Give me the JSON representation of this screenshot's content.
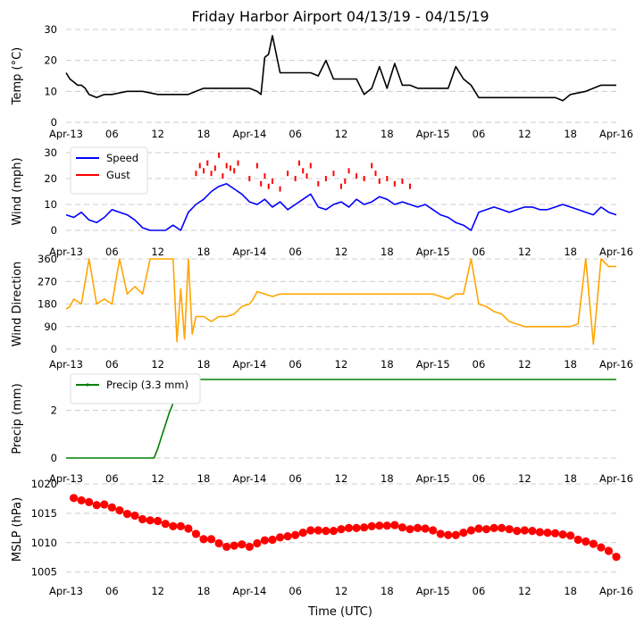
{
  "chart_data": {
    "type": "line",
    "title": "Friday Harbor Airport 04/13/19 - 04/15/19",
    "xlabel": "Time (UTC)",
    "x_ticks": [
      "Apr-13",
      "06",
      "12",
      "18",
      "Apr-14",
      "06",
      "12",
      "18",
      "Apr-15",
      "06",
      "12",
      "18",
      "Apr-16"
    ],
    "x_range_hours": [
      0,
      72
    ],
    "panels": [
      {
        "id": "temp",
        "ylabel": "Temp ($^\\circ$C)",
        "ylabel_display": "Temp (°C)",
        "ylim": [
          0,
          30
        ],
        "yticks": [
          0,
          10,
          20,
          30
        ],
        "series": [
          {
            "name": "Temp",
            "color": "#000000",
            "x": [
              0,
              0.5,
              1,
              1.5,
              2,
              2.5,
              3,
              4,
              5,
              6,
              8,
              10,
              12,
              14,
              16,
              17,
              18,
              20,
              22,
              24,
              25,
              25.5,
              26,
              26.5,
              27,
              28,
              30,
              32,
              33,
              34,
              35,
              36,
              38,
              39,
              40,
              41,
              42,
              43,
              44,
              45,
              46,
              47,
              48,
              50,
              51,
              52,
              53,
              54,
              56,
              58,
              60,
              62,
              64,
              65,
              66,
              68,
              70,
              72
            ],
            "values": [
              16,
              14,
              13,
              12,
              12,
              11,
              9,
              8,
              9,
              9,
              10,
              10,
              9,
              9,
              9,
              10,
              11,
              11,
              11,
              11,
              10,
              9,
              21,
              22,
              28,
              16,
              16,
              16,
              15,
              20,
              14,
              14,
              14,
              9,
              11,
              18,
              11,
              19,
              12,
              12,
              11,
              11,
              11,
              11,
              18,
              14,
              12,
              8,
              8,
              8,
              8,
              8,
              8,
              7,
              9,
              10,
              12,
              12
            ]
          }
        ]
      },
      {
        "id": "wind",
        "ylabel": "Wind (mph)",
        "ylim": [
          0,
          30
        ],
        "yticks": [
          0,
          10,
          20,
          30
        ],
        "legend": "top-left",
        "series": [
          {
            "name": "Speed",
            "color": "#0000ff",
            "x": [
              0,
              1,
              2,
              3,
              4,
              5,
              6,
              7,
              8,
              9,
              10,
              11,
              12,
              13,
              14,
              15,
              16,
              17,
              18,
              19,
              20,
              21,
              22,
              23,
              24,
              25,
              26,
              27,
              28,
              29,
              30,
              31,
              32,
              33,
              34,
              35,
              36,
              37,
              38,
              39,
              40,
              41,
              42,
              43,
              44,
              45,
              46,
              47,
              48,
              49,
              50,
              51,
              52,
              53,
              54,
              55,
              56,
              57,
              58,
              59,
              60,
              61,
              62,
              63,
              64,
              65,
              66,
              67,
              68,
              69,
              70,
              71,
              72
            ],
            "values": [
              6,
              5,
              7,
              4,
              3,
              5,
              8,
              7,
              6,
              4,
              1,
              0,
              0,
              0,
              2,
              0,
              7,
              10,
              12,
              15,
              17,
              18,
              16,
              14,
              11,
              10,
              12,
              9,
              11,
              8,
              10,
              12,
              14,
              9,
              8,
              10,
              11,
              9,
              12,
              10,
              11,
              13,
              12,
              10,
              11,
              10,
              9,
              10,
              8,
              6,
              5,
              3,
              2,
              0,
              7,
              8,
              9,
              8,
              7,
              8,
              9,
              9,
              8,
              8,
              9,
              10,
              9,
              8,
              7,
              6,
              9,
              7,
              6
            ]
          },
          {
            "name": "Gust",
            "color": "#ff0000",
            "x": [
              17,
              17.5,
              18,
              18.5,
              19,
              19.5,
              20,
              20.5,
              21,
              21.5,
              22,
              22.5,
              24,
              25,
              25.5,
              26,
              26.5,
              27,
              28,
              29,
              30,
              30.5,
              31,
              31.5,
              32,
              33,
              34,
              35,
              36,
              36.5,
              37,
              38,
              39,
              40,
              40.5,
              41,
              42,
              43,
              44,
              45
            ],
            "values": [
              22,
              25,
              23,
              26,
              22,
              24,
              29,
              21,
              25,
              24,
              23,
              26,
              20,
              25,
              18,
              21,
              17,
              19,
              16,
              22,
              20,
              26,
              23,
              21,
              25,
              18,
              20,
              22,
              17,
              19,
              23,
              21,
              20,
              25,
              22,
              19,
              20,
              18,
              19,
              17
            ]
          }
        ]
      },
      {
        "id": "dir",
        "ylabel": "Wind Direction",
        "ylim": [
          0,
          360
        ],
        "yticks": [
          0,
          90,
          180,
          270,
          360
        ],
        "series": [
          {
            "name": "Direction",
            "color": "#ffa500",
            "x": [
              0,
              0.5,
              1,
              2,
              3,
              4,
              5,
              6,
              7,
              8,
              9,
              10,
              11,
              12,
              13,
              14,
              14.5,
              15,
              15.5,
              16,
              16.5,
              17,
              18,
              19,
              20,
              21,
              22,
              23,
              24,
              24.5,
              25,
              26,
              27,
              28,
              30,
              32,
              34,
              36,
              38,
              40,
              42,
              44,
              46,
              48,
              50,
              51,
              52,
              53,
              54,
              55,
              56,
              57,
              58,
              60,
              62,
              64,
              66,
              67,
              68,
              69,
              70,
              71,
              72
            ],
            "values": [
              160,
              170,
              200,
              180,
              360,
              180,
              200,
              180,
              360,
              220,
              250,
              220,
              360,
              360,
              360,
              360,
              30,
              240,
              40,
              360,
              60,
              130,
              130,
              110,
              130,
              130,
              140,
              170,
              180,
              200,
              230,
              220,
              210,
              220,
              220,
              220,
              220,
              220,
              220,
              220,
              220,
              220,
              220,
              220,
              200,
              220,
              220,
              360,
              180,
              170,
              150,
              140,
              110,
              90,
              90,
              90,
              90,
              100,
              360,
              20,
              360,
              330,
              330
            ]
          }
        ]
      },
      {
        "id": "precip",
        "ylabel": "Precip (mm)",
        "ylim": [
          0,
          3.3
        ],
        "yticks": [
          0,
          2
        ],
        "legend": "top-left",
        "series": [
          {
            "name": "Precip (3.3 mm)",
            "color": "#008000",
            "x": [
              0,
              2,
              4,
              6,
              8,
              10,
              11.5,
              12,
              12.5,
              13,
              13.5,
              14,
              14.5,
              15,
              15.5,
              16,
              18,
              24,
              30,
              36,
              42,
              48,
              54,
              60,
              66,
              72
            ],
            "values": [
              0,
              0,
              0,
              0,
              0,
              0,
              0,
              0.4,
              0.9,
              1.4,
              1.9,
              2.3,
              2.3,
              2.3,
              2.3,
              3.3,
              3.3,
              3.3,
              3.3,
              3.3,
              3.3,
              3.3,
              3.3,
              3.3,
              3.3,
              3.3
            ]
          }
        ]
      },
      {
        "id": "mslp",
        "ylabel": "MSLP (hPa)",
        "ylim": [
          1004.5,
          1020
        ],
        "yticks": [
          1005,
          1010,
          1015,
          1020
        ],
        "series": [
          {
            "name": "MSLP",
            "color": "#ff0000",
            "x": [
              1,
              2,
              3,
              4,
              5,
              6,
              7,
              8,
              9,
              10,
              11,
              12,
              13,
              14,
              15,
              16,
              17,
              18,
              19,
              20,
              21,
              22,
              23,
              24,
              25,
              26,
              27,
              28,
              29,
              30,
              31,
              32,
              33,
              34,
              35,
              36,
              37,
              38,
              39,
              40,
              41,
              42,
              43,
              44,
              45,
              46,
              47,
              48,
              49,
              50,
              51,
              52,
              53,
              54,
              55,
              56,
              57,
              58,
              59,
              60,
              61,
              62,
              63,
              64,
              65,
              66,
              67,
              68,
              69,
              70,
              71,
              72
            ],
            "values": [
              1017.6,
              1017.2,
              1016.9,
              1016.4,
              1016.5,
              1016.0,
              1015.5,
              1014.9,
              1014.6,
              1014.0,
              1013.8,
              1013.7,
              1013.2,
              1012.8,
              1012.8,
              1012.4,
              1011.5,
              1010.6,
              1010.6,
              1009.9,
              1009.3,
              1009.5,
              1009.7,
              1009.3,
              1009.9,
              1010.4,
              1010.5,
              1010.9,
              1011.1,
              1011.3,
              1011.7,
              1012.1,
              1012.1,
              1012.0,
              1012.0,
              1012.3,
              1012.5,
              1012.5,
              1012.6,
              1012.8,
              1012.9,
              1012.9,
              1013.0,
              1012.6,
              1012.3,
              1012.5,
              1012.4,
              1012.1,
              1011.5,
              1011.3,
              1011.3,
              1011.7,
              1012.1,
              1012.4,
              1012.3,
              1012.5,
              1012.5,
              1012.3,
              1012.0,
              1012.1,
              1012.0,
              1011.8,
              1011.7,
              1011.6,
              1011.4,
              1011.2,
              1010.5,
              1010.2,
              1009.8,
              1009.2,
              1008.6,
              1007.6
            ]
          }
        ]
      }
    ]
  }
}
